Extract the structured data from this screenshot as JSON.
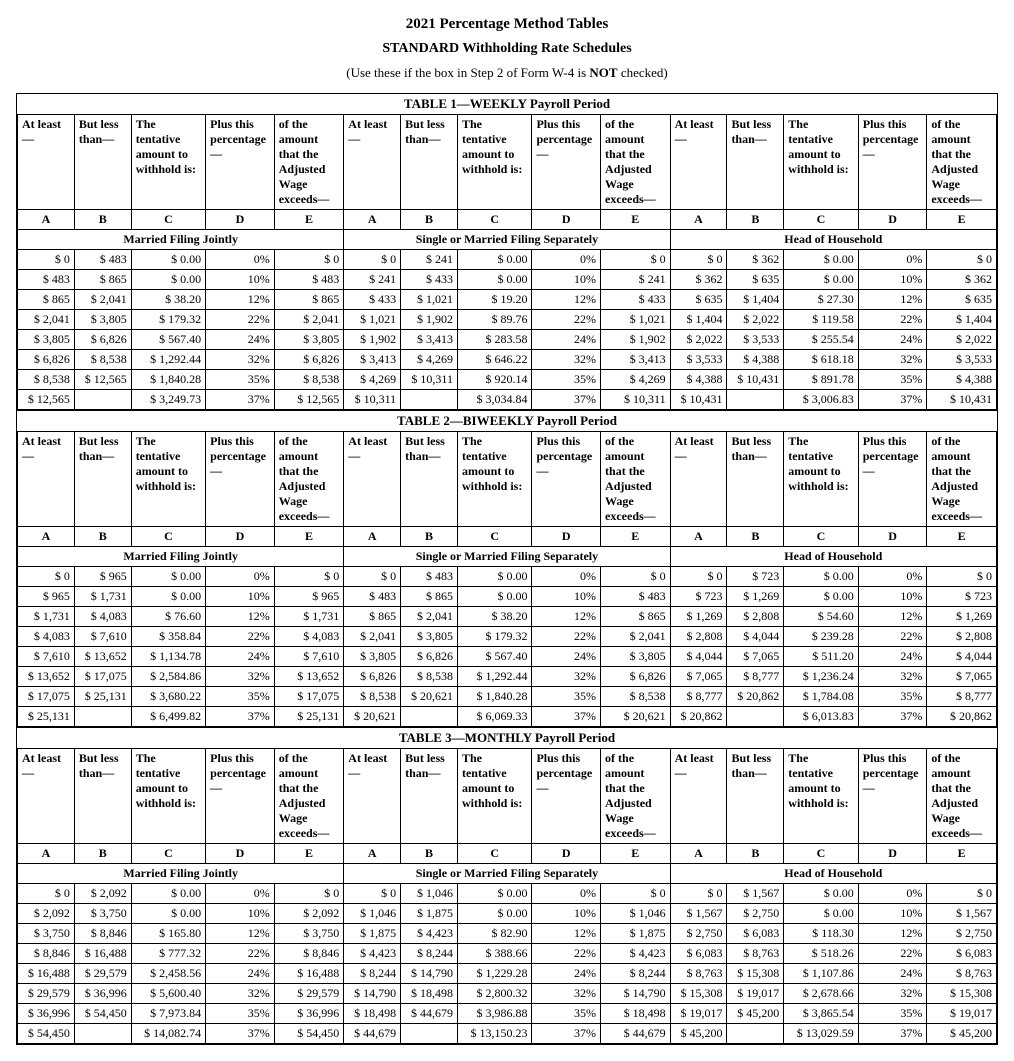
{
  "titles": {
    "main": "2021 Percentage Method Tables",
    "sub": "STANDARD Withholding Rate Schedules",
    "note_pre": "(Use these if the box in Step 2 of Form W-4 is ",
    "note_bold": "NOT",
    "note_post": " checked)"
  },
  "col_headers": {
    "a": "At least —",
    "b": "But less than—",
    "c": "The tentative amount to withhold is:",
    "d": "Plus this percentage —",
    "e": "of the amount that the Adjusted Wage exceeds—",
    "A": "A",
    "B": "B",
    "C": "C",
    "D": "D",
    "E": "E"
  },
  "filing_status": {
    "mfj": "Married Filing Jointly",
    "single": "Single or Married Filing Separately",
    "hoh": "Head of Household"
  },
  "tables": [
    {
      "caption": "TABLE 1—WEEKLY Payroll Period",
      "rows": [
        {
          "mfj": [
            "$ 0",
            "$ 483",
            "$ 0.00",
            "0%",
            "$ 0"
          ],
          "s": [
            "$ 0",
            "$ 241",
            "$ 0.00",
            "0%",
            "$ 0"
          ],
          "h": [
            "$ 0",
            "$ 362",
            "$ 0.00",
            "0%",
            "$ 0"
          ]
        },
        {
          "mfj": [
            "$ 483",
            "$ 865",
            "$ 0.00",
            "10%",
            "$ 483"
          ],
          "s": [
            "$ 241",
            "$ 433",
            "$ 0.00",
            "10%",
            "$ 241"
          ],
          "h": [
            "$ 362",
            "$ 635",
            "$ 0.00",
            "10%",
            "$ 362"
          ]
        },
        {
          "mfj": [
            "$ 865",
            "$ 2,041",
            "$ 38.20",
            "12%",
            "$ 865"
          ],
          "s": [
            "$ 433",
            "$ 1,021",
            "$ 19.20",
            "12%",
            "$ 433"
          ],
          "h": [
            "$ 635",
            "$ 1,404",
            "$ 27.30",
            "12%",
            "$ 635"
          ]
        },
        {
          "mfj": [
            "$ 2,041",
            "$ 3,805",
            "$ 179.32",
            "22%",
            "$ 2,041"
          ],
          "s": [
            "$ 1,021",
            "$ 1,902",
            "$ 89.76",
            "22%",
            "$ 1,021"
          ],
          "h": [
            "$ 1,404",
            "$ 2,022",
            "$ 119.58",
            "22%",
            "$ 1,404"
          ]
        },
        {
          "mfj": [
            "$ 3,805",
            "$ 6,826",
            "$ 567.40",
            "24%",
            "$ 3,805"
          ],
          "s": [
            "$ 1,902",
            "$ 3,413",
            "$ 283.58",
            "24%",
            "$ 1,902"
          ],
          "h": [
            "$ 2,022",
            "$ 3,533",
            "$ 255.54",
            "24%",
            "$ 2,022"
          ]
        },
        {
          "mfj": [
            "$ 6,826",
            "$ 8,538",
            "$ 1,292.44",
            "32%",
            "$ 6,826"
          ],
          "s": [
            "$ 3,413",
            "$ 4,269",
            "$ 646.22",
            "32%",
            "$ 3,413"
          ],
          "h": [
            "$ 3,533",
            "$ 4,388",
            "$ 618.18",
            "32%",
            "$ 3,533"
          ]
        },
        {
          "mfj": [
            "$ 8,538",
            "$ 12,565",
            "$ 1,840.28",
            "35%",
            "$ 8,538"
          ],
          "s": [
            "$ 4,269",
            "$ 10,311",
            "$ 920.14",
            "35%",
            "$ 4,269"
          ],
          "h": [
            "$ 4,388",
            "$ 10,431",
            "$ 891.78",
            "35%",
            "$ 4,388"
          ]
        },
        {
          "mfj": [
            "$ 12,565",
            "",
            "$ 3,249.73",
            "37%",
            "$ 12,565"
          ],
          "s": [
            "$ 10,311",
            "",
            "$ 3,034.84",
            "37%",
            "$ 10,311"
          ],
          "h": [
            "$ 10,431",
            "",
            "$ 3,006.83",
            "37%",
            "$ 10,431"
          ]
        }
      ]
    },
    {
      "caption": "TABLE 2—BIWEEKLY Payroll Period",
      "rows": [
        {
          "mfj": [
            "$ 0",
            "$ 965",
            "$ 0.00",
            "0%",
            "$ 0"
          ],
          "s": [
            "$ 0",
            "$ 483",
            "$ 0.00",
            "0%",
            "$ 0"
          ],
          "h": [
            "$ 0",
            "$ 723",
            "$ 0.00",
            "0%",
            "$ 0"
          ]
        },
        {
          "mfj": [
            "$ 965",
            "$ 1,731",
            "$ 0.00",
            "10%",
            "$ 965"
          ],
          "s": [
            "$ 483",
            "$ 865",
            "$ 0.00",
            "10%",
            "$ 483"
          ],
          "h": [
            "$ 723",
            "$ 1,269",
            "$ 0.00",
            "10%",
            "$ 723"
          ]
        },
        {
          "mfj": [
            "$ 1,731",
            "$ 4,083",
            "$ 76.60",
            "12%",
            "$ 1,731"
          ],
          "s": [
            "$ 865",
            "$ 2,041",
            "$ 38.20",
            "12%",
            "$ 865"
          ],
          "h": [
            "$ 1,269",
            "$ 2,808",
            "$ 54.60",
            "12%",
            "$ 1,269"
          ]
        },
        {
          "mfj": [
            "$ 4,083",
            "$ 7,610",
            "$ 358.84",
            "22%",
            "$ 4,083"
          ],
          "s": [
            "$ 2,041",
            "$ 3,805",
            "$ 179.32",
            "22%",
            "$ 2,041"
          ],
          "h": [
            "$ 2,808",
            "$ 4,044",
            "$ 239.28",
            "22%",
            "$ 2,808"
          ]
        },
        {
          "mfj": [
            "$ 7,610",
            "$ 13,652",
            "$ 1,134.78",
            "24%",
            "$ 7,610"
          ],
          "s": [
            "$ 3,805",
            "$ 6,826",
            "$ 567.40",
            "24%",
            "$ 3,805"
          ],
          "h": [
            "$ 4,044",
            "$ 7,065",
            "$ 511.20",
            "24%",
            "$ 4,044"
          ]
        },
        {
          "mfj": [
            "$ 13,652",
            "$ 17,075",
            "$ 2,584.86",
            "32%",
            "$ 13,652"
          ],
          "s": [
            "$ 6,826",
            "$ 8,538",
            "$ 1,292.44",
            "32%",
            "$ 6,826"
          ],
          "h": [
            "$ 7,065",
            "$ 8,777",
            "$ 1,236.24",
            "32%",
            "$ 7,065"
          ]
        },
        {
          "mfj": [
            "$ 17,075",
            "$ 25,131",
            "$ 3,680.22",
            "35%",
            "$ 17,075"
          ],
          "s": [
            "$ 8,538",
            "$ 20,621",
            "$ 1,840.28",
            "35%",
            "$ 8,538"
          ],
          "h": [
            "$ 8,777",
            "$ 20,862",
            "$ 1,784.08",
            "35%",
            "$ 8,777"
          ]
        },
        {
          "mfj": [
            "$ 25,131",
            "",
            "$ 6,499.82",
            "37%",
            "$ 25,131"
          ],
          "s": [
            "$ 20,621",
            "",
            "$ 6,069.33",
            "37%",
            "$ 20,621"
          ],
          "h": [
            "$ 20,862",
            "",
            "$ 6,013.83",
            "37%",
            "$ 20,862"
          ]
        }
      ]
    },
    {
      "caption": "TABLE 3—MONTHLY Payroll Period",
      "rows": [
        {
          "mfj": [
            "$ 0",
            "$ 2,092",
            "$ 0.00",
            "0%",
            "$ 0"
          ],
          "s": [
            "$ 0",
            "$ 1,046",
            "$ 0.00",
            "0%",
            "$ 0"
          ],
          "h": [
            "$ 0",
            "$ 1,567",
            "$ 0.00",
            "0%",
            "$ 0"
          ]
        },
        {
          "mfj": [
            "$ 2,092",
            "$ 3,750",
            "$ 0.00",
            "10%",
            "$ 2,092"
          ],
          "s": [
            "$ 1,046",
            "$ 1,875",
            "$ 0.00",
            "10%",
            "$ 1,046"
          ],
          "h": [
            "$ 1,567",
            "$ 2,750",
            "$ 0.00",
            "10%",
            "$ 1,567"
          ]
        },
        {
          "mfj": [
            "$ 3,750",
            "$ 8,846",
            "$ 165.80",
            "12%",
            "$ 3,750"
          ],
          "s": [
            "$ 1,875",
            "$ 4,423",
            "$ 82.90",
            "12%",
            "$ 1,875"
          ],
          "h": [
            "$ 2,750",
            "$ 6,083",
            "$ 118.30",
            "12%",
            "$ 2,750"
          ]
        },
        {
          "mfj": [
            "$ 8,846",
            "$ 16,488",
            "$ 777.32",
            "22%",
            "$ 8,846"
          ],
          "s": [
            "$ 4,423",
            "$ 8,244",
            "$ 388.66",
            "22%",
            "$ 4,423"
          ],
          "h": [
            "$ 6,083",
            "$ 8,763",
            "$ 518.26",
            "22%",
            "$ 6,083"
          ]
        },
        {
          "mfj": [
            "$ 16,488",
            "$ 29,579",
            "$ 2,458.56",
            "24%",
            "$ 16,488"
          ],
          "s": [
            "$ 8,244",
            "$ 14,790",
            "$ 1,229.28",
            "24%",
            "$ 8,244"
          ],
          "h": [
            "$ 8,763",
            "$ 15,308",
            "$ 1,107.86",
            "24%",
            "$ 8,763"
          ]
        },
        {
          "mfj": [
            "$ 29,579",
            "$ 36,996",
            "$ 5,600.40",
            "32%",
            "$ 29,579"
          ],
          "s": [
            "$ 14,790",
            "$ 18,498",
            "$ 2,800.32",
            "32%",
            "$ 14,790"
          ],
          "h": [
            "$ 15,308",
            "$ 19,017",
            "$ 2,678.66",
            "32%",
            "$ 15,308"
          ]
        },
        {
          "mfj": [
            "$ 36,996",
            "$ 54,450",
            "$ 7,973.84",
            "35%",
            "$ 36,996"
          ],
          "s": [
            "$ 18,498",
            "$ 44,679",
            "$ 3,986.88",
            "35%",
            "$ 18,498"
          ],
          "h": [
            "$ 19,017",
            "$ 45,200",
            "$ 3,865.54",
            "35%",
            "$ 19,017"
          ]
        },
        {
          "mfj": [
            "$ 54,450",
            "",
            "$ 14,082.74",
            "37%",
            "$ 54,450"
          ],
          "s": [
            "$ 44,679",
            "",
            "$ 13,150.23",
            "37%",
            "$ 44,679"
          ],
          "h": [
            "$ 45,200",
            "",
            "$ 13,029.59",
            "37%",
            "$ 45,200"
          ]
        }
      ]
    }
  ]
}
